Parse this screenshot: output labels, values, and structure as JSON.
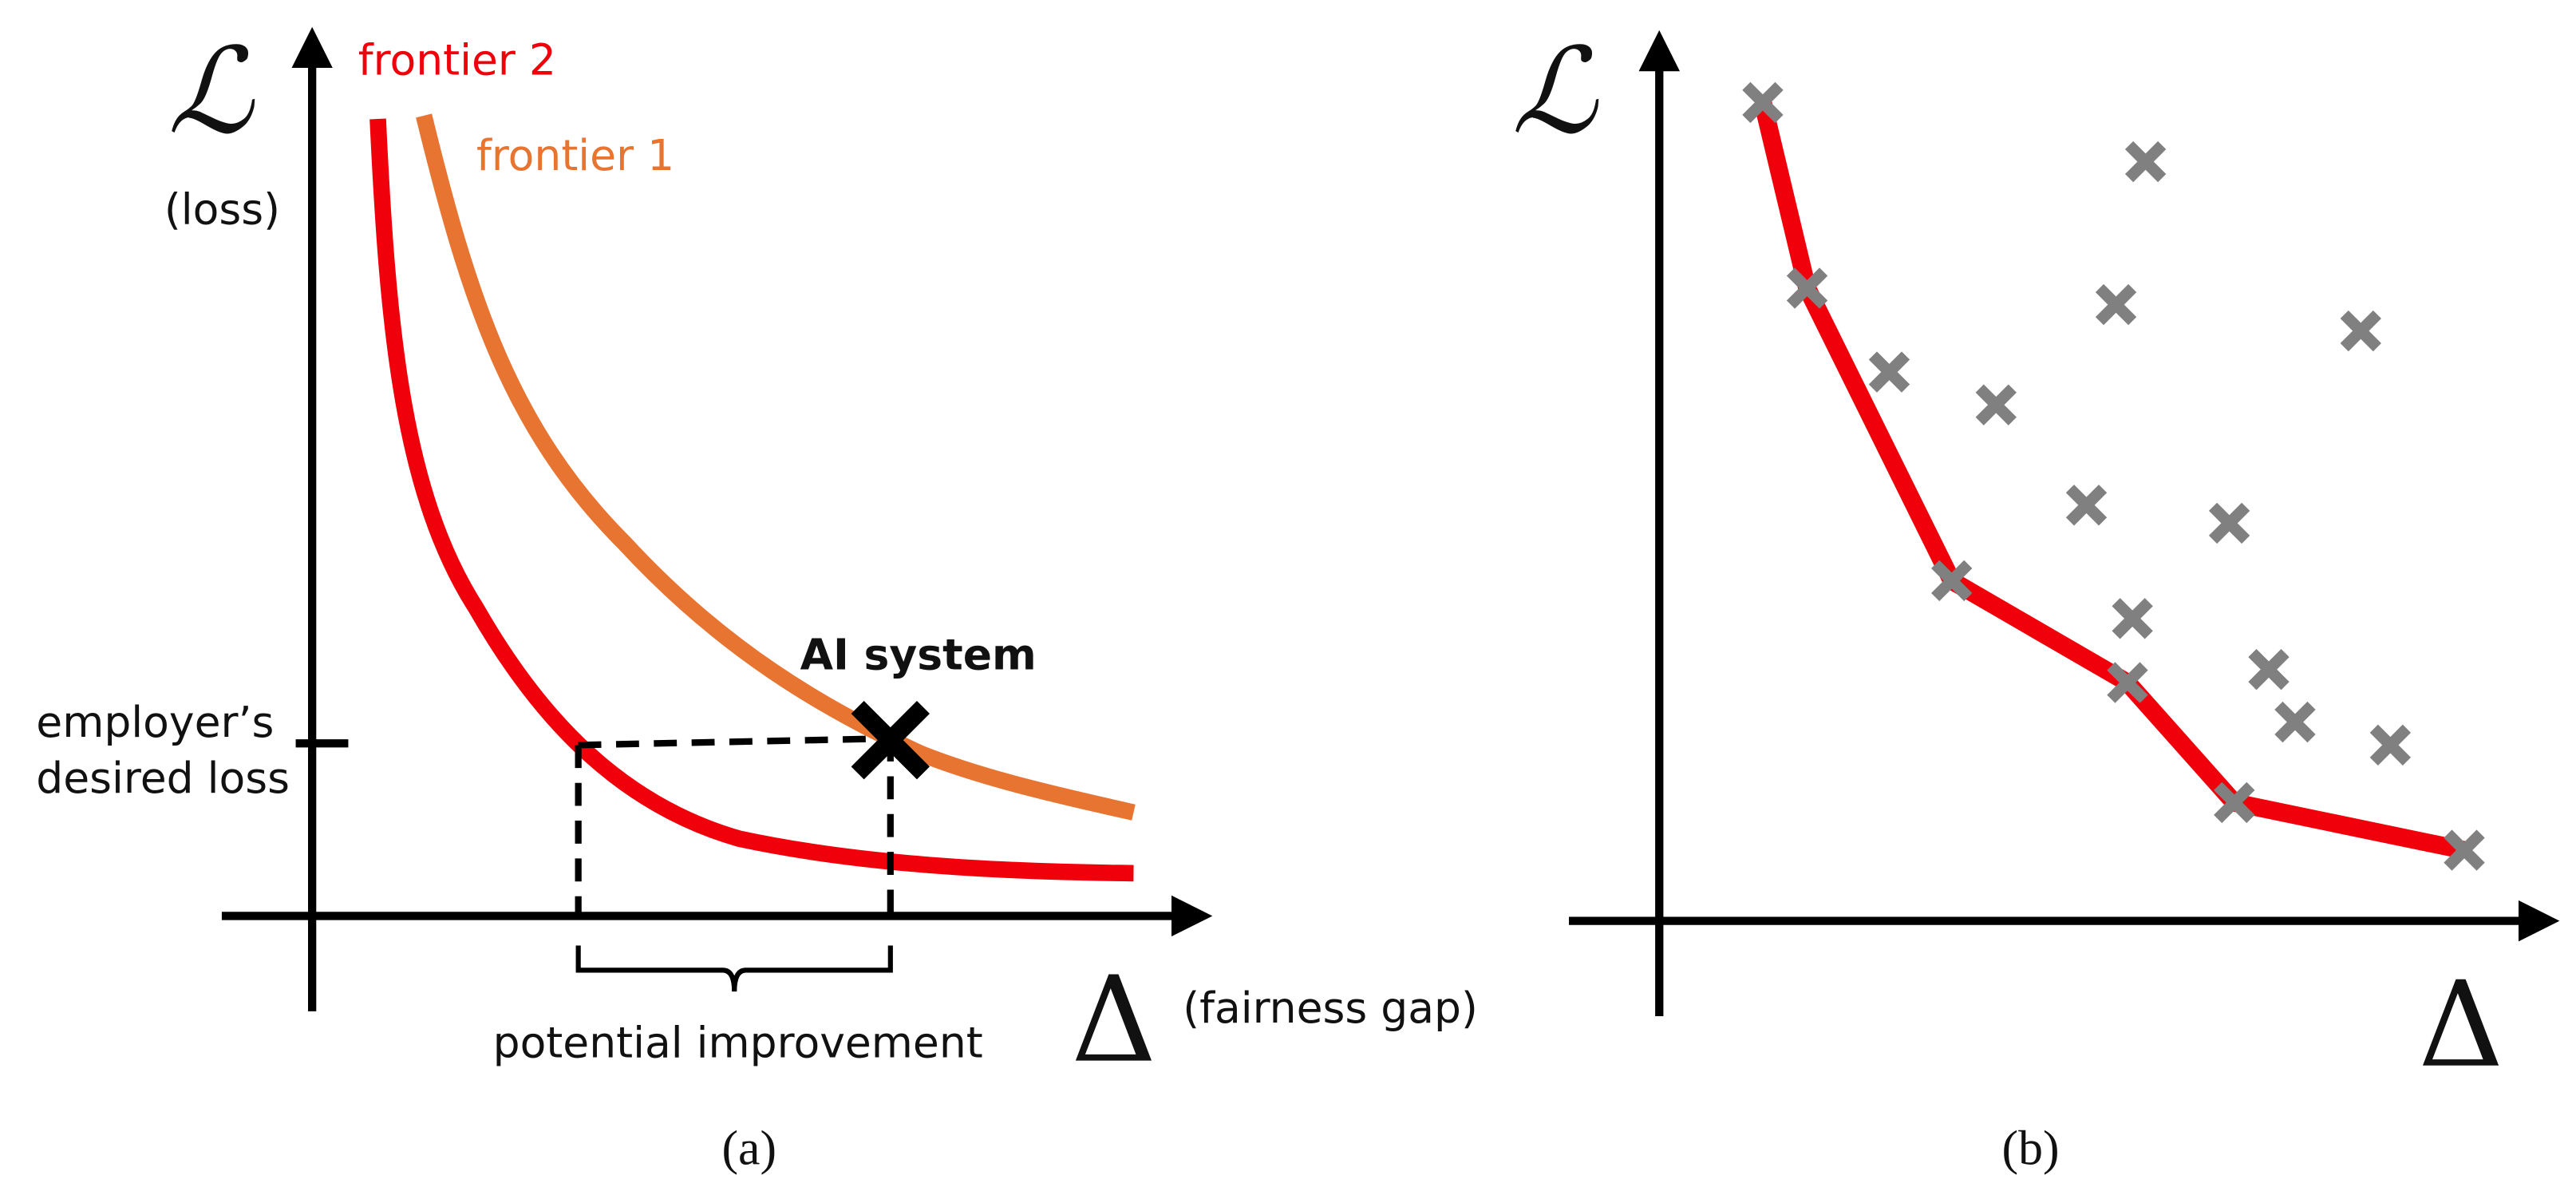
{
  "panel_a": {
    "y_symbol": "ℒ",
    "y_label": "(loss)",
    "x_symbol": "Δ",
    "x_label": "(fairness gap)",
    "curves": [
      "frontier 2",
      "frontier 1"
    ],
    "marker_label": "AI system",
    "desired_loss": [
      "employer’s",
      "desired loss"
    ],
    "improvement_label": "potential improvement",
    "caption": "(a)"
  },
  "panel_b": {
    "y_symbol": "ℒ",
    "x_symbol": "Δ",
    "caption": "(b)"
  }
}
